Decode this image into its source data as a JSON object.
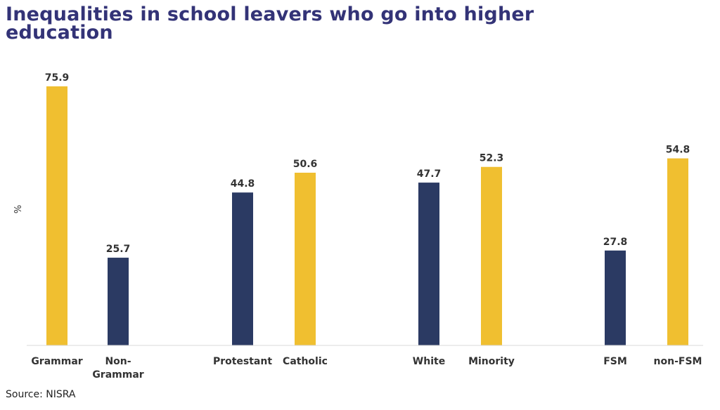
{
  "title": "Inequalities in school leavers who go into higher education",
  "source": "Source: NISRA",
  "colors": {
    "navy": "#2b3a63",
    "gold": "#f0bf30",
    "title": "#333377"
  },
  "chart_data": {
    "type": "bar",
    "title": "Inequalities in school leavers who go into higher education",
    "ylabel": "%",
    "xlabel": "",
    "ylim": [
      0,
      80
    ],
    "grid": false,
    "legend": "none",
    "categories": [
      {
        "label": [
          "Grammar"
        ],
        "value": 75.9,
        "color": "#f0bf30"
      },
      {
        "label": [
          "Non-",
          "Grammar"
        ],
        "value": 25.7,
        "color": "#2b3a63"
      },
      {
        "label": [
          "Protestant"
        ],
        "value": 44.8,
        "color": "#2b3a63"
      },
      {
        "label": [
          "Catholic"
        ],
        "value": 50.6,
        "color": "#f0bf30"
      },
      {
        "label": [
          "White"
        ],
        "value": 47.7,
        "color": "#2b3a63"
      },
      {
        "label": [
          "Minority"
        ],
        "value": 52.3,
        "color": "#f0bf30"
      },
      {
        "label": [
          "FSM"
        ],
        "value": 27.8,
        "color": "#2b3a63"
      },
      {
        "label": [
          "non-FSM"
        ],
        "value": 54.8,
        "color": "#f0bf30"
      }
    ]
  }
}
